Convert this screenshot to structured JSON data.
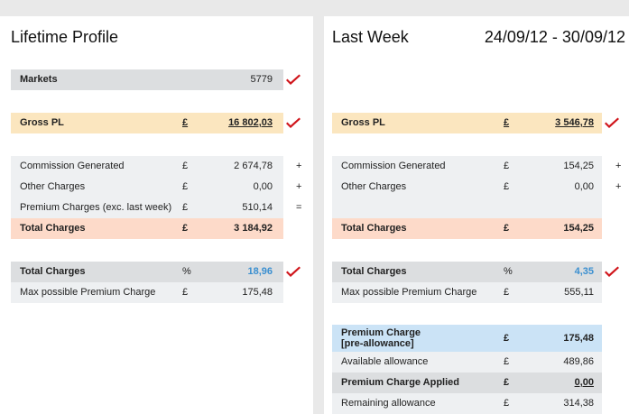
{
  "left": {
    "title": "Lifetime Profile",
    "markets": {
      "label": "Markets",
      "value": "5779"
    },
    "gross_pl": {
      "label": "Gross PL",
      "currency": "£",
      "value": "16 802,03"
    },
    "commission": {
      "label": "Commission Generated",
      "currency": "£",
      "value": "2 674,78",
      "op": "+"
    },
    "other_charges": {
      "label": "Other Charges",
      "currency": "£",
      "value": "0,00",
      "op": "+"
    },
    "premium_charges": {
      "label": "Premium Charges (exc. last week)",
      "currency": "£",
      "value": "510,14",
      "op": "="
    },
    "total_charges": {
      "label": "Total Charges",
      "currency": "£",
      "value": "3 184,92"
    },
    "total_charges_pct": {
      "label": "Total Charges",
      "unit": "%",
      "value": "18,96"
    },
    "max_premium": {
      "label": "Max possible Premium Charge",
      "currency": "£",
      "value": "175,48"
    }
  },
  "right": {
    "title": "Last Week",
    "date_range": "24/09/12 - 30/09/12",
    "gross_pl": {
      "label": "Gross PL",
      "currency": "£",
      "value": "3 546,78"
    },
    "commission": {
      "label": "Commission Generated",
      "currency": "£",
      "value": "154,25",
      "op": "+"
    },
    "other_charges": {
      "label": "Other Charges",
      "currency": "£",
      "value": "0,00",
      "op": "+"
    },
    "total_charges": {
      "label": "Total Charges",
      "currency": "£",
      "value": "154,25"
    },
    "total_charges_pct": {
      "label": "Total Charges",
      "unit": "%",
      "value": "4,35"
    },
    "max_premium": {
      "label": "Max possible Premium Charge",
      "currency": "£",
      "value": "555,11"
    },
    "premium_charge": {
      "label_line1": "Premium Charge",
      "label_line2": "[pre-allowance]",
      "currency": "£",
      "value": "175,48"
    },
    "available_allowance": {
      "label": "Available allowance",
      "currency": "£",
      "value": "489,86"
    },
    "premium_applied": {
      "label": "Premium Charge Applied",
      "currency": "£",
      "value": "0,00"
    },
    "remaining_allowance": {
      "label": "Remaining allowance",
      "currency": "£",
      "value": "314,38"
    }
  },
  "icons": {
    "check": "checkmark-icon"
  },
  "colors": {
    "header_gray": "#dcdee0",
    "row_light": "#eef0f2",
    "gross_pl_bg": "#fbe6bf",
    "total_charges_bg": "#fddac9",
    "premium_bg": "#cbe3f6",
    "percent_text": "#3a8fd0",
    "check_red": "#d0151b"
  }
}
